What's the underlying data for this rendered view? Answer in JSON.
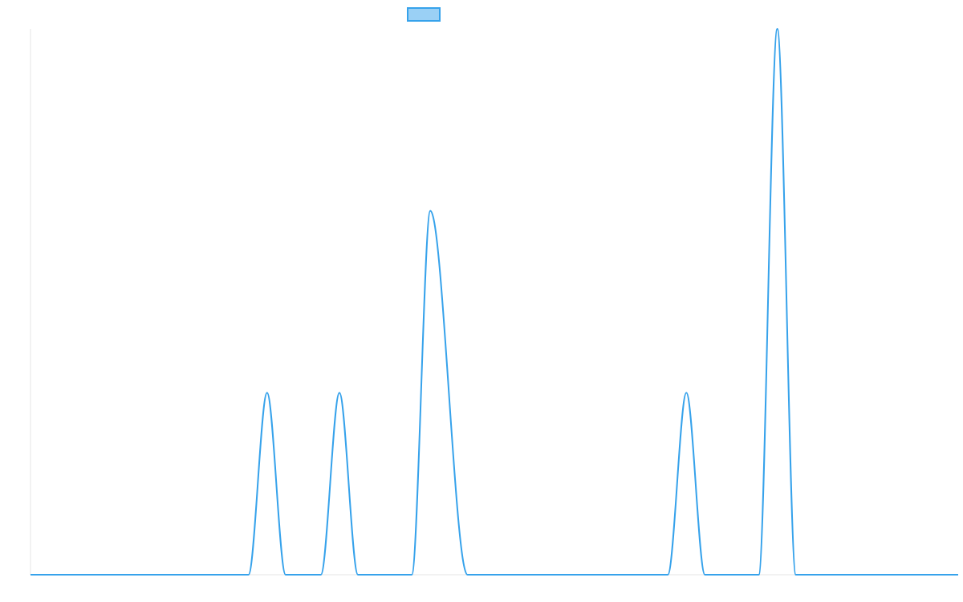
{
  "chart_data": {
    "type": "line",
    "title": "",
    "xlabel": "",
    "ylabel": "",
    "xlim": [
      0,
      100
    ],
    "ylim": [
      0,
      3
    ],
    "grid": false,
    "legend": {
      "placement": "top-center",
      "entries": [
        {
          "label": "",
          "color": "#36a2eb",
          "fill": "#9ad0f5"
        }
      ]
    },
    "series": [
      {
        "color": "#36a2eb",
        "x": [
          0,
          23.5,
          25.5,
          27.5,
          31.3,
          33.3,
          35.3,
          41.1,
          43.1,
          47.1,
          68.7,
          70.7,
          72.7,
          78.5,
          80.5,
          82.5,
          100
        ],
        "y": [
          0,
          0,
          1,
          0,
          0,
          1,
          0,
          0,
          2,
          0,
          0,
          1,
          0,
          0,
          3,
          0,
          0
        ]
      }
    ]
  }
}
